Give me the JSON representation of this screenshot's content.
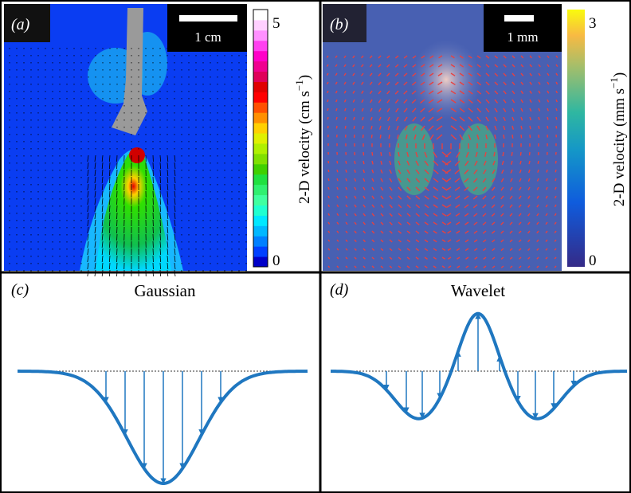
{
  "panels": [
    {
      "label": "(a)",
      "scale_bar": "1 cm",
      "colorbar": {
        "label": "2-D velocity (cm s",
        "label_exponent": "−1",
        "label_end": ")",
        "max": 5,
        "min": 0
      }
    },
    {
      "label": "(b)",
      "scale_bar": "1 mm",
      "colorbar": {
        "label": "2-D velocity (mm s",
        "label_exponent": "−1",
        "label_end": ")",
        "max": 3,
        "min": 0
      }
    },
    {
      "label": "(c)",
      "title": "Gaussian"
    },
    {
      "label": "(d)",
      "title": "Wavelet"
    }
  ]
}
